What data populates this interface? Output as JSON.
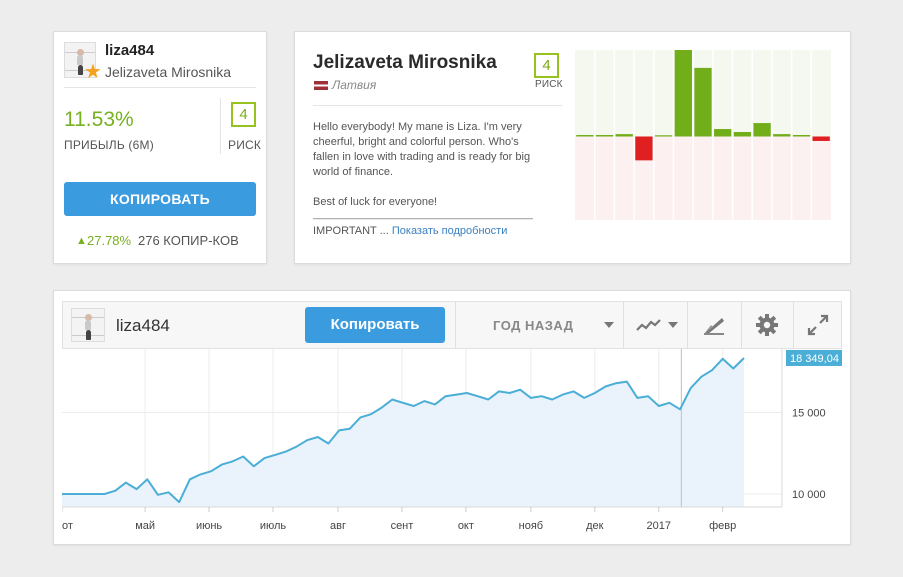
{
  "profile": {
    "username": "liza484",
    "full_name": "Jelizaveta Mirosnika",
    "gain_value": "11.53%",
    "gain_label": "ПРИБЫЛЬ (6М)",
    "risk_value": "4",
    "risk_label": "РИСК",
    "copy_button": "КОПИРОВАТЬ",
    "copiers_gain": "27.78%",
    "copiers_count": "276 КОПИР-КОВ",
    "colors": {
      "gain": "#77b020",
      "risk": "#97c21e",
      "button": "#3b9bdf",
      "star": "#f4a11e"
    },
    "icons": {
      "star": "star-icon",
      "up": "arrow-up-icon"
    }
  },
  "info": {
    "name": "Jelizaveta Mirosnika",
    "country": "Латвия",
    "risk_value": "4",
    "risk_label": "РИСК",
    "bio": "Hello everybody! My mane is Liza. I'm very\ncheerful, bright and colorful person. Who's\nfallen in love with trading and is ready for big\nworld of finance.\n\nBest of luck for everyone!",
    "bio_rule": "________________________________________",
    "bio_tail": "IMPORTANT ...",
    "more_link": "Показать подробности"
  },
  "monthly_chart": {
    "type": "bar",
    "values": [
      0.5,
      0.5,
      0.8,
      -8,
      0,
      29,
      23,
      2.5,
      1.5,
      4.5,
      0.8,
      0.5,
      -1.5
    ],
    "ylim": [
      -28,
      29
    ],
    "colors": {
      "positive": "#72ad1a",
      "negative": "#e02020"
    }
  },
  "chart_panel": {
    "username": "liza484",
    "copy_button": "Копировать",
    "period": "ГОД НАЗАД",
    "icons": [
      "line-chart-icon",
      "draw-tools-icon",
      "gear-icon",
      "expand-icon"
    ],
    "current_value": "18 349,04"
  },
  "chart_data": {
    "type": "area",
    "xlabels": [
      "от",
      "май",
      "июнь",
      "июль",
      "авг",
      "сент",
      "окт",
      "нояб",
      "дек",
      "2017",
      "февр"
    ],
    "yticks": [
      "10 000",
      "15 000"
    ],
    "ytick_values": [
      10000,
      15000
    ],
    "ylim": [
      9200,
      18900
    ],
    "x": [
      0,
      1,
      2,
      3,
      4,
      5,
      6,
      7,
      8,
      9,
      10,
      11,
      12,
      13,
      14,
      15,
      16,
      17,
      18,
      19,
      20,
      21,
      22,
      23,
      24,
      25,
      26,
      27,
      28,
      29,
      30,
      31,
      32,
      33,
      34,
      35,
      36,
      37,
      38,
      39,
      40,
      41,
      42,
      43,
      44,
      45,
      46,
      47,
      48,
      49,
      50,
      51,
      52,
      53,
      54,
      55,
      56,
      57,
      58,
      59,
      60,
      61,
      62,
      63,
      64
    ],
    "y": [
      10000,
      10000,
      10000,
      10000,
      10000,
      10200,
      10700,
      10300,
      10900,
      9950,
      10100,
      9500,
      10900,
      11200,
      11400,
      11800,
      12000,
      12300,
      11700,
      12200,
      12400,
      12600,
      12900,
      13300,
      13500,
      13100,
      13900,
      14000,
      14700,
      14900,
      15300,
      15800,
      15600,
      15400,
      15700,
      15500,
      16000,
      16100,
      16200,
      16000,
      15800,
      16300,
      16200,
      16400,
      15900,
      16000,
      15800,
      16100,
      16300,
      15900,
      16200,
      16600,
      16800,
      16900,
      15900,
      16000,
      15400,
      15600,
      15200,
      16500,
      17200,
      17600,
      18300,
      17700,
      18349
    ],
    "xlabel_positions": [
      0,
      7.8,
      13.8,
      19.8,
      25.9,
      31.9,
      37.9,
      44.0,
      50.0,
      56.0,
      62.0
    ],
    "marker_index": 57,
    "colors": {
      "line": "#4aaed6",
      "fill": "#eaf3fb",
      "label_bg": "#4aaed6"
    }
  }
}
